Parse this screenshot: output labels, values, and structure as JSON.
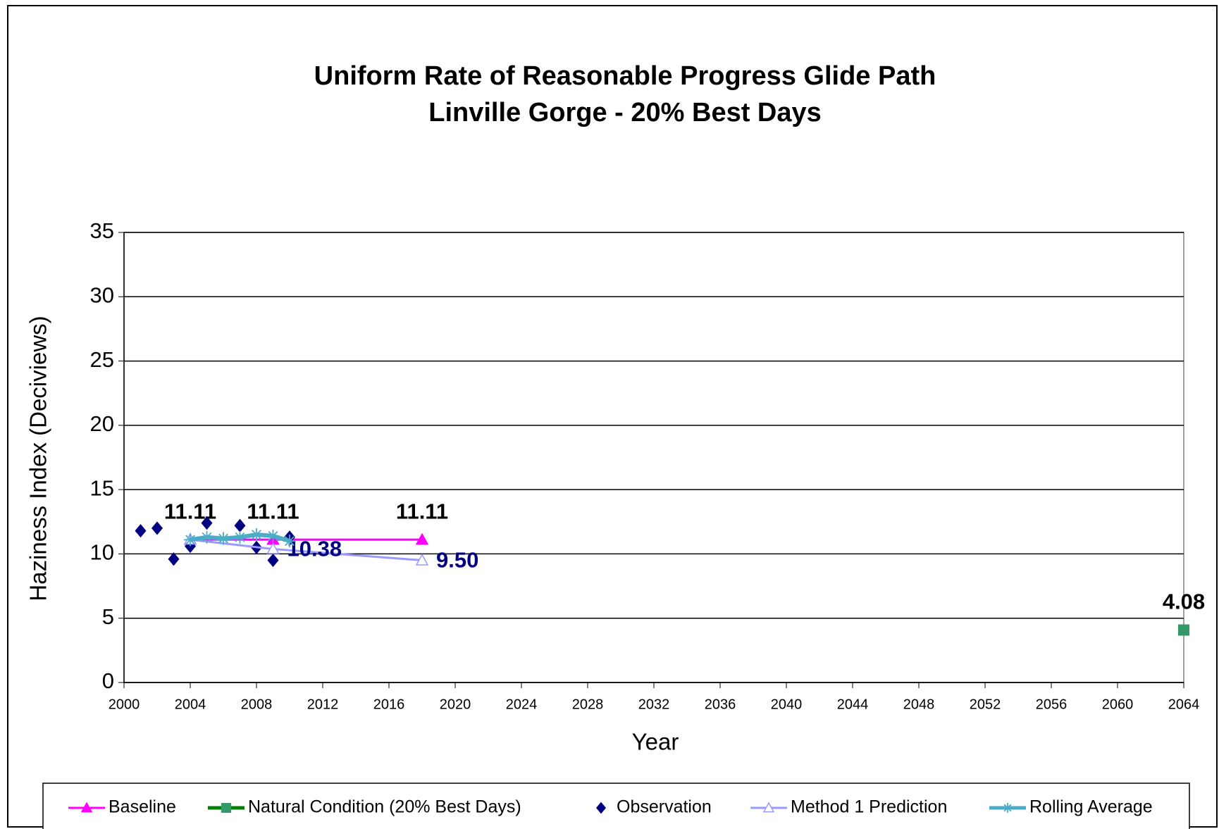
{
  "chart_data": {
    "type": "line",
    "title": [
      "Uniform Rate of Reasonable Progress Glide Path",
      "Linville Gorge - 20% Best Days"
    ],
    "x_label": "Year",
    "y_label": "Haziness Index (Deciviews)",
    "xlim": [
      2000,
      2064
    ],
    "xticks": [
      2000,
      2004,
      2008,
      2012,
      2016,
      2020,
      2024,
      2028,
      2032,
      2036,
      2040,
      2044,
      2048,
      2052,
      2056,
      2060,
      2064
    ],
    "ylim": [
      0,
      35
    ],
    "yticks": [
      0,
      5,
      10,
      15,
      20,
      25,
      30,
      35
    ],
    "grid": true,
    "legend": "bottom",
    "series": [
      {
        "name": "Baseline",
        "color": "#ff00ff",
        "marker": "triangle",
        "line": true,
        "line_width": 3,
        "label_color": "#000000",
        "label_position": "above",
        "x": [
          2004,
          2009,
          2018
        ],
        "values": [
          11.11,
          11.11,
          11.11
        ]
      },
      {
        "name": "Natural Condition (20% Best Days)",
        "color": "#008000",
        "marker_color": "#339966",
        "marker": "square",
        "line": true,
        "line_width": 5,
        "label_color": "#000000",
        "label_position": "above",
        "x": [
          2064
        ],
        "values": [
          4.08
        ]
      },
      {
        "name": "Observation",
        "color": "#000080",
        "marker": "diamond",
        "line": false,
        "x": [
          2001,
          2002,
          2003,
          2004,
          2005,
          2007,
          2008,
          2009,
          2010
        ],
        "values": [
          11.8,
          12.0,
          9.6,
          10.6,
          12.4,
          12.2,
          10.5,
          9.5,
          11.3
        ]
      },
      {
        "name": "Method 1 Prediction",
        "color": "#9999ff",
        "marker": "open-triangle",
        "line": true,
        "line_width": 3,
        "label_color": "#000080",
        "label_position": "right",
        "x": [
          2004,
          2009,
          2018
        ],
        "values": [
          11.11,
          10.38,
          9.5
        ],
        "value_labels": [
          null,
          "10.38",
          "9.50"
        ]
      },
      {
        "name": "Rolling Average",
        "color": "#4bacc6",
        "marker": "star",
        "line": true,
        "line_width": 6,
        "x": [
          2004,
          2005,
          2006,
          2007,
          2008,
          2009,
          2010
        ],
        "values": [
          11.1,
          11.3,
          11.2,
          11.3,
          11.5,
          11.4,
          11.0
        ]
      }
    ]
  }
}
